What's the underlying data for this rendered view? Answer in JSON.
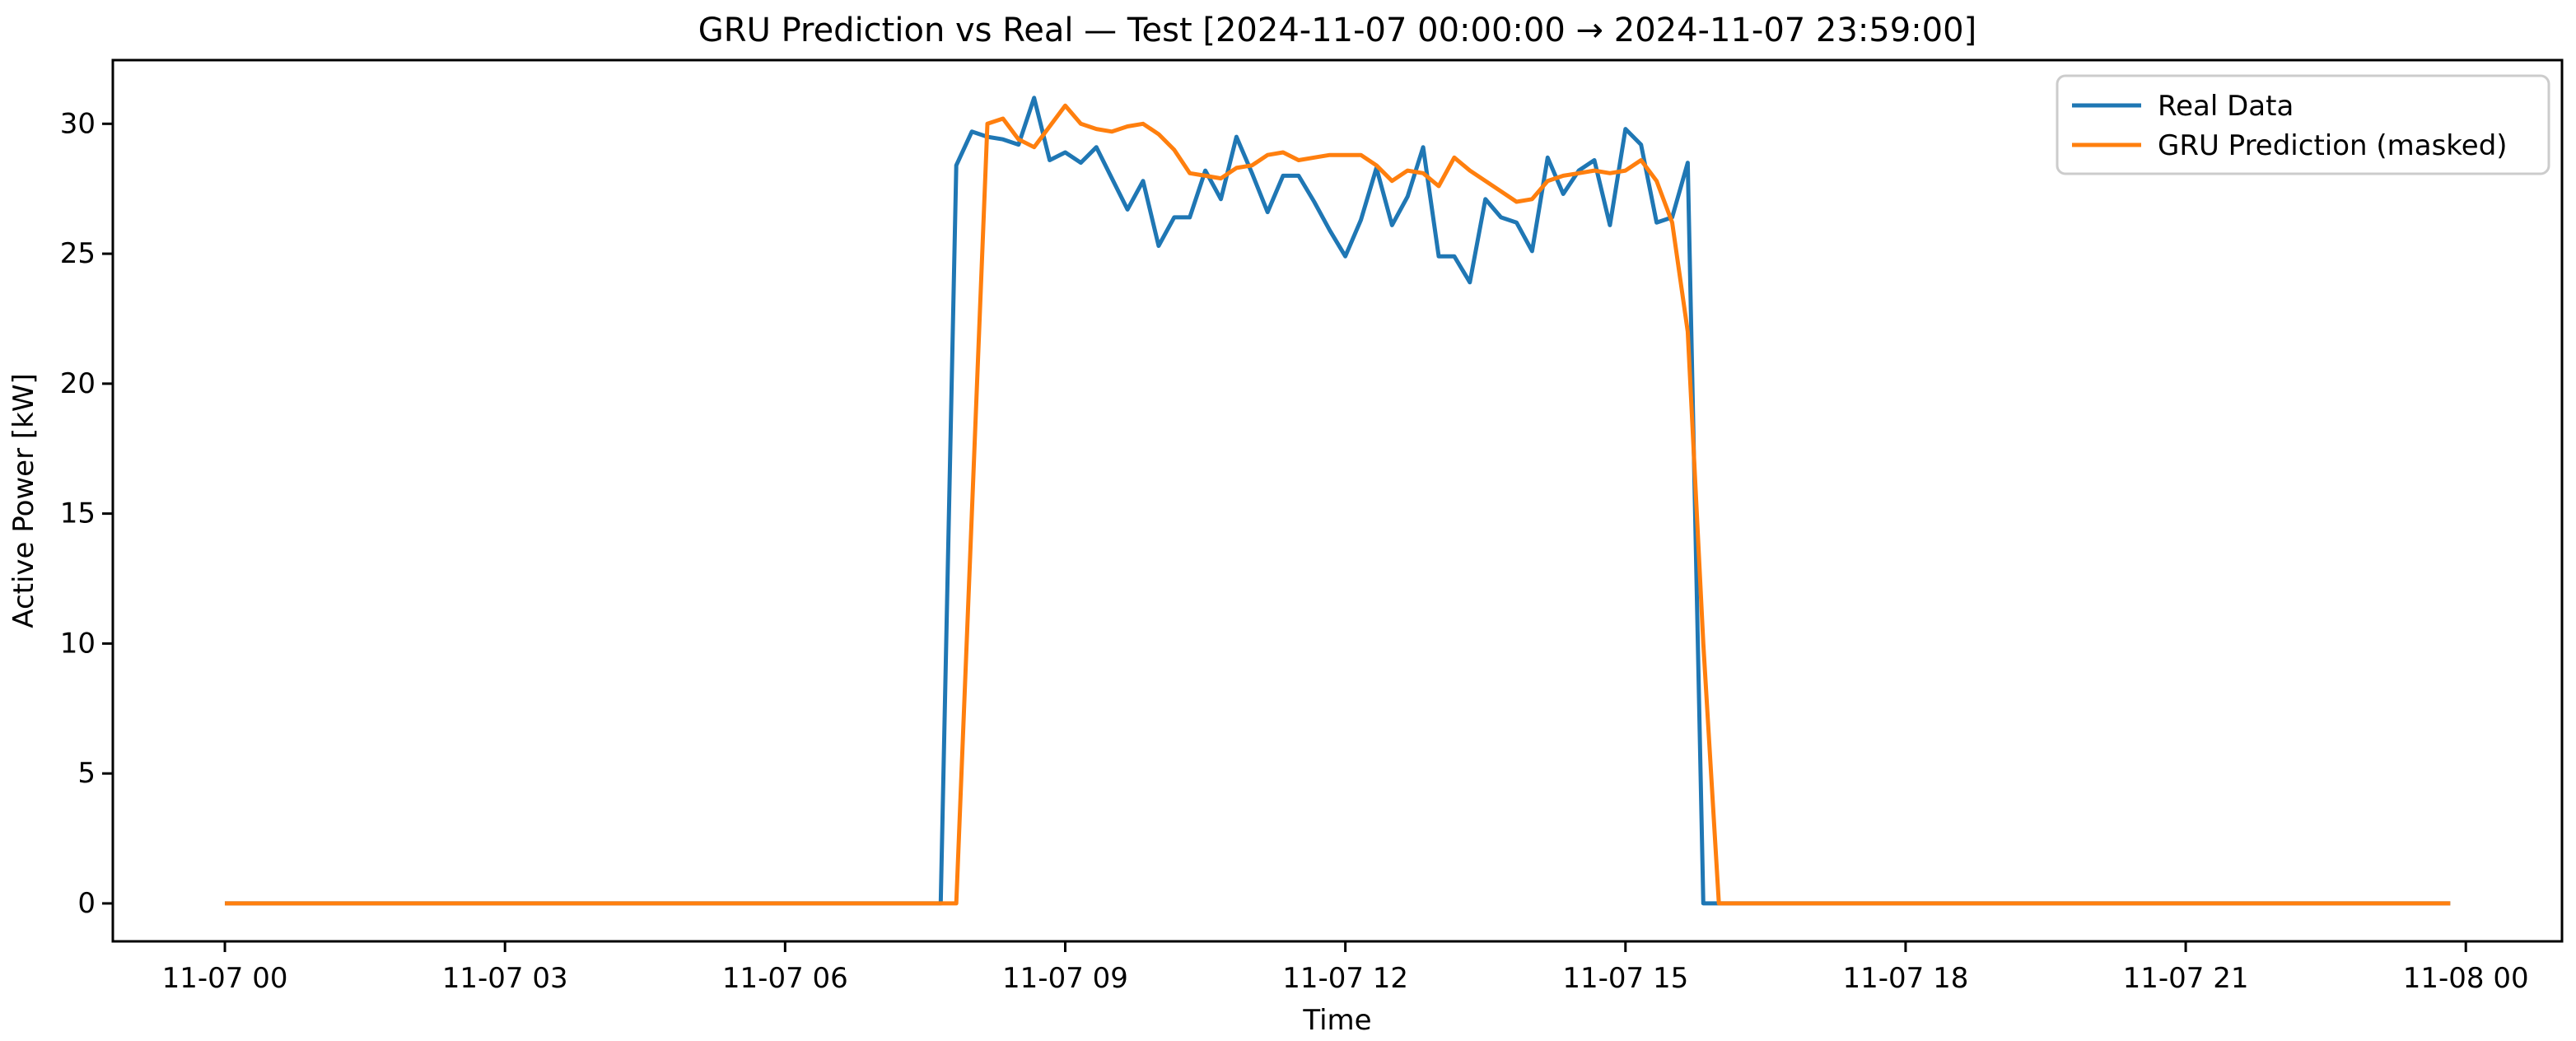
{
  "chart_data": {
    "type": "line",
    "title": "GRU Prediction vs Real — Test [2024-11-07 00:00:00 → 2024-11-07 23:59:00]",
    "xlabel": "Time",
    "ylabel": "Active Power [kW]",
    "grid": false,
    "legend_position": "upper right",
    "background_color": "#ffffff",
    "x_tick_hours": [
      0,
      3,
      6,
      9,
      12,
      15,
      18,
      21,
      24
    ],
    "x_tick_labels": [
      "11-07 00",
      "11-07 03",
      "11-07 06",
      "11-07 09",
      "11-07 12",
      "11-07 15",
      "11-07 18",
      "11-07 21",
      "11-08 00"
    ],
    "y_ticks": [
      0,
      5,
      10,
      15,
      20,
      25,
      30
    ],
    "y_tick_labels": [
      "0",
      "5",
      "10",
      "15",
      "20",
      "25",
      "30"
    ],
    "xlim_hours": [
      -1.2,
      25.03
    ],
    "ylim": [
      -1.46,
      32.45
    ],
    "x_start_minutes": 0,
    "x_step_minutes": 10,
    "x_end_minutes": 1430,
    "series": [
      {
        "name": "Real Data",
        "color": "#1f77b4",
        "values": [
          0,
          0,
          0,
          0,
          0,
          0,
          0,
          0,
          0,
          0,
          0,
          0,
          0,
          0,
          0,
          0,
          0,
          0,
          0,
          0,
          0,
          0,
          0,
          0,
          0,
          0,
          0,
          0,
          0,
          0,
          0,
          0,
          0,
          0,
          0,
          0,
          0,
          0,
          0,
          0,
          0,
          0,
          0,
          0,
          0,
          0,
          0,
          28.4,
          29.7,
          29.5,
          29.4,
          29.2,
          31.0,
          28.6,
          28.9,
          28.5,
          29.1,
          27.9,
          26.7,
          27.8,
          25.3,
          26.4,
          26.4,
          28.2,
          27.1,
          29.5,
          28.1,
          26.6,
          28.0,
          28.0,
          27.0,
          25.9,
          24.9,
          26.3,
          28.3,
          26.1,
          27.2,
          29.1,
          24.9,
          24.9,
          23.9,
          27.1,
          26.4,
          26.2,
          25.1,
          28.7,
          27.3,
          28.2,
          28.6,
          26.1,
          29.8,
          29.2,
          26.2,
          26.4,
          28.5,
          0,
          0,
          0,
          0,
          0,
          0,
          0,
          0,
          0,
          0,
          0,
          0,
          0,
          0,
          0,
          0,
          0,
          0,
          0,
          0,
          0,
          0,
          0,
          0,
          0,
          0,
          0,
          0,
          0,
          0,
          0,
          0,
          0,
          0,
          0,
          0,
          0,
          0,
          0,
          0,
          0,
          0,
          0,
          0,
          0,
          0,
          0,
          0,
          0
        ]
      },
      {
        "name": "GRU Prediction (masked)",
        "color": "#ff7f0e",
        "values": [
          0,
          0,
          0,
          0,
          0,
          0,
          0,
          0,
          0,
          0,
          0,
          0,
          0,
          0,
          0,
          0,
          0,
          0,
          0,
          0,
          0,
          0,
          0,
          0,
          0,
          0,
          0,
          0,
          0,
          0,
          0,
          0,
          0,
          0,
          0,
          0,
          0,
          0,
          0,
          0,
          0,
          0,
          0,
          0,
          0,
          0,
          0,
          0,
          15.0,
          30.0,
          30.2,
          29.4,
          29.1,
          29.9,
          30.7,
          30.0,
          29.8,
          29.7,
          29.9,
          30.0,
          29.6,
          29.0,
          28.1,
          28.0,
          27.9,
          28.3,
          28.4,
          28.8,
          28.9,
          28.6,
          28.7,
          28.8,
          28.8,
          28.8,
          28.4,
          27.8,
          28.2,
          28.1,
          27.6,
          28.7,
          28.2,
          27.8,
          27.4,
          27.0,
          27.1,
          27.8,
          28.0,
          28.1,
          28.2,
          28.1,
          28.2,
          28.6,
          27.8,
          26.2,
          22.0,
          10.0,
          0.0,
          0,
          0,
          0,
          0,
          0,
          0,
          0,
          0,
          0,
          0,
          0,
          0,
          0,
          0,
          0,
          0,
          0,
          0,
          0,
          0,
          0,
          0,
          0,
          0,
          0,
          0,
          0,
          0,
          0,
          0,
          0,
          0,
          0,
          0,
          0,
          0,
          0,
          0,
          0,
          0,
          0,
          0,
          0,
          0,
          0,
          0,
          0
        ]
      }
    ]
  },
  "legend": {
    "items": [
      "Real Data",
      "GRU Prediction (masked)"
    ]
  },
  "style_colors": {
    "real_line": "#1f77b4",
    "prediction_line": "#ff7f0e",
    "spine": "#000000",
    "legend_border": "#cccccc",
    "legend_background": "#ffffff"
  }
}
